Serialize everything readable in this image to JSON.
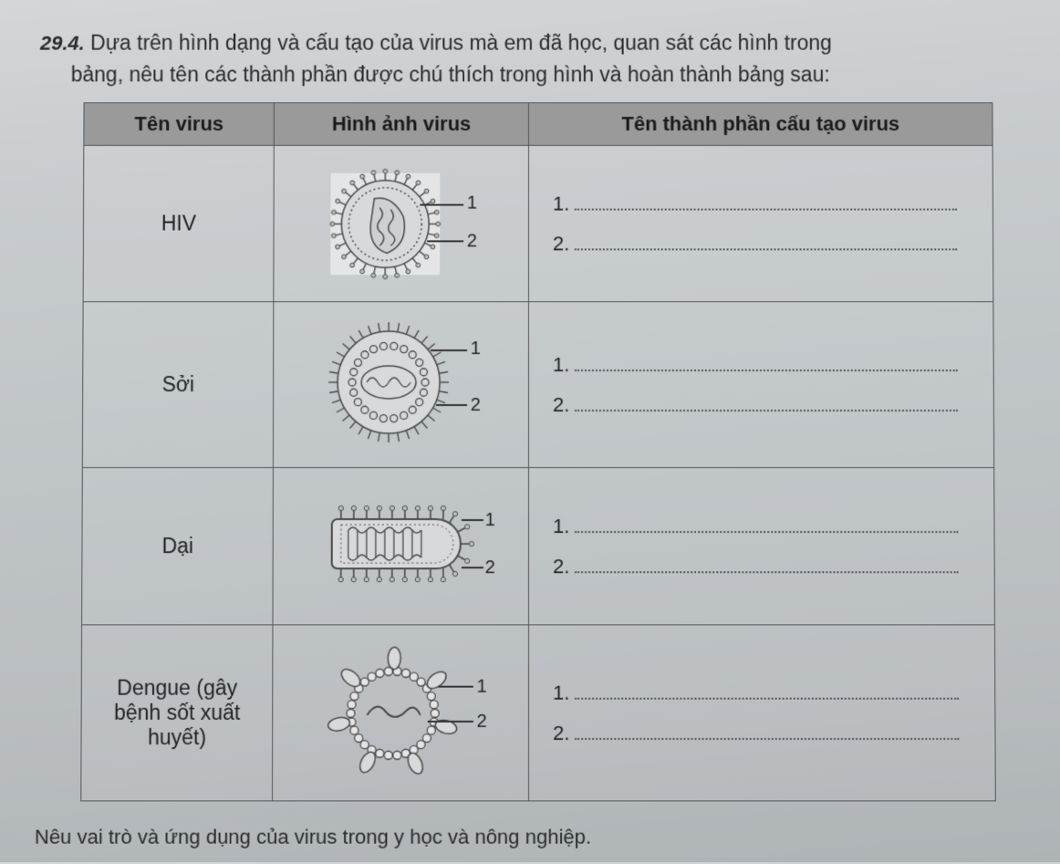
{
  "question": {
    "number": "29.4.",
    "line1": "Dựa trên hình dạng và cấu tạo của virus mà em đã học, quan sát các hình trong",
    "line2": "bảng, nêu tên các thành phần được chú thích trong hình và hoàn thành bảng sau:"
  },
  "table": {
    "headers": {
      "name": "Tên virus",
      "image": "Hình ảnh virus",
      "parts": "Tên thành phần cấu tạo virus"
    },
    "rows": [
      {
        "name": "HIV",
        "labels": [
          "1",
          "2"
        ],
        "answers": [
          "1.",
          "2."
        ]
      },
      {
        "name": "Sởi",
        "labels": [
          "1",
          "2"
        ],
        "answers": [
          "1.",
          "2."
        ]
      },
      {
        "name": "Dại",
        "labels": [
          "1",
          "2"
        ],
        "answers": [
          "1.",
          "2."
        ]
      },
      {
        "name_l1": "Dengue (gây",
        "name_l2": "bệnh sốt xuất",
        "name_l3": "huyết)",
        "labels": [
          "1",
          "2"
        ],
        "answers": [
          "1.",
          "2."
        ]
      }
    ]
  },
  "footer": "Nêu vai trò và ứng dụng của virus trong y học và nông nghiệp.",
  "style": {
    "header_bg": "#9a9a9a",
    "border_color": "#555555",
    "text_color": "#2a2a2a",
    "dot_color": "#555555",
    "diagram_fill": "#d8d9da",
    "diagram_stroke": "#4a4a4a",
    "diagram_inner": "#bfc0c1"
  }
}
